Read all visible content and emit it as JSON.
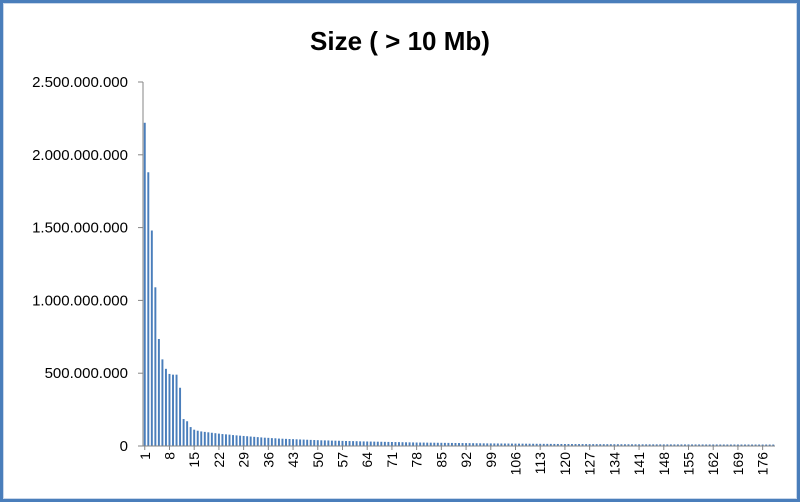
{
  "chart_data": {
    "type": "bar",
    "title": "Size ( > 10 Mb)",
    "xlabel": "",
    "ylabel": "",
    "ylim": [
      0,
      2500000000
    ],
    "yticks": [
      0,
      500000000,
      1000000000,
      1500000000,
      2000000000,
      2500000000
    ],
    "ytick_labels": [
      "0",
      "500.000.000",
      "1.000.000.000",
      "1.500.000.000",
      "2.000.000.000",
      "2.500.000.000"
    ],
    "x_first": 1,
    "x_last": 179,
    "xtick_labels": [
      "1",
      "8",
      "15",
      "22",
      "29",
      "36",
      "43",
      "50",
      "57",
      "64",
      "71",
      "78",
      "85",
      "92",
      "99",
      "106",
      "113",
      "120",
      "127",
      "134",
      "141",
      "148",
      "155",
      "162",
      "169",
      "176"
    ],
    "grid": false,
    "legend": "none",
    "bar_color": "#4a7ebb",
    "values": [
      2220000000,
      1880000000,
      1480000000,
      1090000000,
      735000000,
      595000000,
      530000000,
      495000000,
      490000000,
      490000000,
      400000000,
      185000000,
      170000000,
      130000000,
      112000000,
      105000000,
      100000000,
      97000000,
      94000000,
      91000000,
      88000000,
      85000000,
      82000000,
      80000000,
      78000000,
      75000000,
      73000000,
      71000000,
      69000000,
      67000000,
      65000000,
      63000000,
      61000000,
      59000000,
      57000000,
      56000000,
      54000000,
      53000000,
      51000000,
      50000000,
      49000000,
      48000000,
      47000000,
      46000000,
      45000000,
      44000000,
      43000000,
      42000000,
      41000000,
      40000000,
      39000000,
      38500000,
      38000000,
      37000000,
      36500000,
      36000000,
      35000000,
      34500000,
      34000000,
      33500000,
      33000000,
      32000000,
      31500000,
      31000000,
      30500000,
      30000000,
      29500000,
      29000000,
      28500000,
      28000000,
      27500000,
      27000000,
      26500000,
      26000000,
      25500000,
      25000000,
      24500000,
      24000000,
      23700000,
      23400000,
      23100000,
      22800000,
      22500000,
      22200000,
      21900000,
      21600000,
      21300000,
      21000000,
      20700000,
      20400000,
      20100000,
      19800000,
      19500000,
      19200000,
      18900000,
      18600000,
      18300000,
      18000000,
      17800000,
      17600000,
      17400000,
      17200000,
      17000000,
      16800000,
      16600000,
      16400000,
      16200000,
      16000000,
      15800000,
      15600000,
      15400000,
      15200000,
      15000000,
      14800000,
      14600000,
      14400000,
      14200000,
      14000000,
      13800000,
      13600000,
      13500000,
      13400000,
      13300000,
      13200000,
      13100000,
      13000000,
      12900000,
      12800000,
      12700000,
      12600000,
      12500000,
      12400000,
      12300000,
      12200000,
      12100000,
      12000000,
      11900000,
      11800000,
      11700000,
      11600000,
      11500000,
      11450000,
      11400000,
      11350000,
      11300000,
      11250000,
      11200000,
      11150000,
      11100000,
      11050000,
      11000000,
      10950000,
      10900000,
      10850000,
      10800000,
      10760000,
      10720000,
      10680000,
      10640000,
      10600000,
      10560000,
      10520000,
      10480000,
      10440000,
      10400000,
      10360000,
      10320000,
      10280000,
      10240000,
      10200000,
      10170000,
      10140000,
      10110000,
      10080000,
      10050000,
      10030000,
      10020000,
      10010000,
      10000000
    ]
  }
}
